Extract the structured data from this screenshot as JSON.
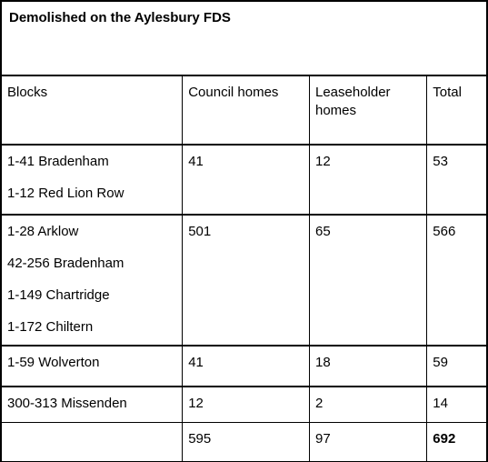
{
  "title": "Demolished on the Aylesbury FDS",
  "headers": {
    "blocks": "Blocks",
    "council": "Council homes",
    "leaseholder": "Leaseholder homes",
    "total": "Total"
  },
  "rows": [
    {
      "blocks": [
        "1-41 Bradenham",
        "1-12 Red Lion Row"
      ],
      "council": "41",
      "leaseholder": "12",
      "total": "53"
    },
    {
      "blocks": [
        "1-28 Arklow",
        "42-256 Bradenham",
        "1-149 Chartridge",
        "1-172 Chiltern"
      ],
      "council": "501",
      "leaseholder": "65",
      "total": "566"
    },
    {
      "blocks": [
        "1-59 Wolverton"
      ],
      "council": "41",
      "leaseholder": "18",
      "total": "59"
    },
    {
      "blocks": [
        "300-313 Missenden"
      ],
      "council": "12",
      "leaseholder": "2",
      "total": "14"
    }
  ],
  "totals": {
    "blocks": "",
    "council": "595",
    "leaseholder": "97",
    "total": "692"
  }
}
